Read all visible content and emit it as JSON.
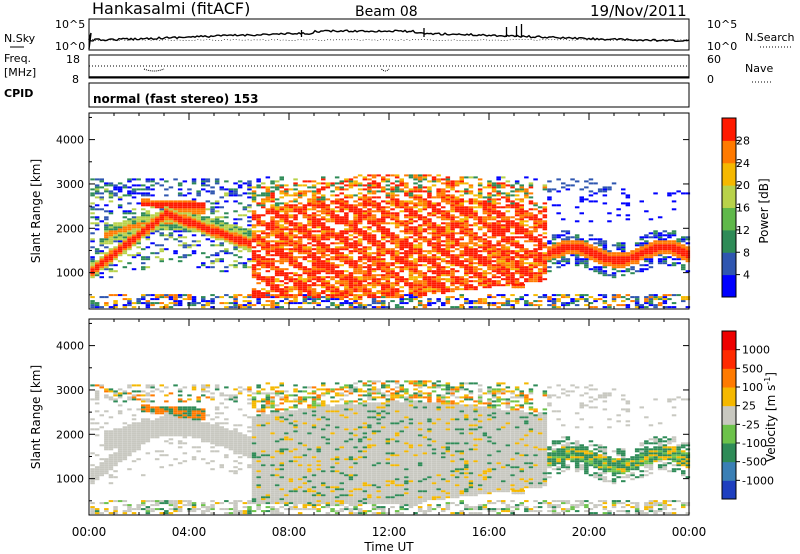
{
  "header": {
    "station": "Hankasalmi (fitACF)",
    "beam": "Beam 08",
    "date": "19/Nov/2011"
  },
  "noise_panel": {
    "left_label": "N.Sky",
    "right_label": "N.Search",
    "left_ticks": [
      "10^5",
      "10^0"
    ],
    "right_ticks": [
      "10^5",
      "10^0"
    ]
  },
  "freq_panel": {
    "left_label_1": "Freq.",
    "left_label_2": "[MHz]",
    "right_label": "Nave",
    "left_ticks": [
      "18",
      "8"
    ],
    "right_ticks": [
      "60",
      "0"
    ]
  },
  "cpid_panel": {
    "label": "CPID",
    "text": "normal (fast stereo) 153"
  },
  "chart_data": [
    {
      "type": "heatmap",
      "panel": "power",
      "ylabel": "Slant Range [km]",
      "xlabel": "",
      "yticks": [
        1000,
        2000,
        3000,
        4000
      ],
      "ylim": [
        180,
        4600
      ],
      "xticks": [
        "00:00",
        "04:00",
        "08:00",
        "12:00",
        "16:00",
        "20:00",
        "00:00"
      ],
      "xlim_hours": [
        0,
        24
      ],
      "colorbar": {
        "label": "Power [dB]",
        "ticks": [
          "4",
          "8",
          "12",
          "16",
          "20",
          "24",
          "28"
        ],
        "colors": [
          "#0000ff",
          "#2f56b0",
          "#2e8b57",
          "#5fb84a",
          "#b8d24a",
          "#f5b800",
          "#ff7a00",
          "#ff1a00"
        ]
      }
    },
    {
      "type": "heatmap",
      "panel": "velocity",
      "ylabel": "Slant Range [km]",
      "xlabel": "Time UT",
      "yticks": [
        1000,
        2000,
        3000,
        4000
      ],
      "ylim": [
        180,
        4600
      ],
      "xticks": [
        "00:00",
        "04:00",
        "08:00",
        "12:00",
        "16:00",
        "20:00",
        "00:00"
      ],
      "xlim_hours": [
        0,
        24
      ],
      "colorbar": {
        "label": "Velocity [m s",
        "label_sup": "-1",
        "label_end": "]",
        "ticks": [
          "1000",
          "500",
          "100",
          "25",
          "-25",
          "-100",
          "-500",
          "-1000"
        ],
        "colors": [
          "#1e3fbf",
          "#3a7fb5",
          "#2e8b57",
          "#6cc24a",
          "#c8c8c0",
          "#f5b800",
          "#ff7a00",
          "#ff2a00",
          "#ee0000"
        ]
      }
    }
  ]
}
